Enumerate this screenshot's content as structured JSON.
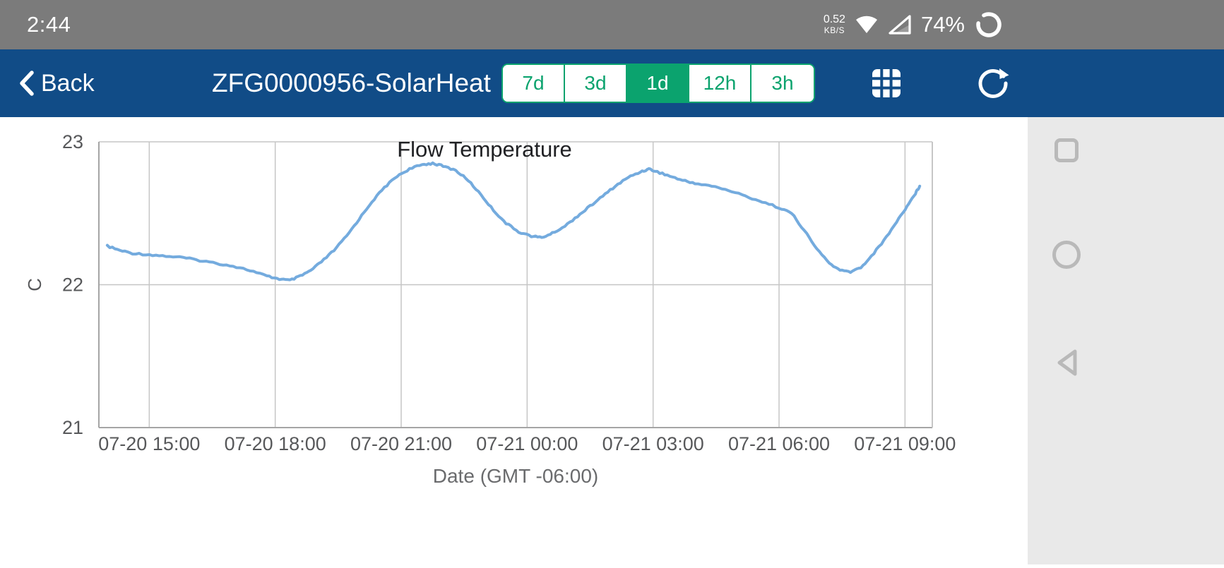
{
  "status_bar": {
    "time": "2:44",
    "network_speed_value": "0.52",
    "network_speed_unit": "KB/S",
    "battery_percent": "74%"
  },
  "nav_bar": {
    "back_label": "Back",
    "title": "ZFG0000956-SolarHeat",
    "range_options": [
      {
        "label": "7d",
        "active": false
      },
      {
        "label": "3d",
        "active": false
      },
      {
        "label": "1d",
        "active": true
      },
      {
        "label": "12h",
        "active": false
      },
      {
        "label": "3h",
        "active": false
      }
    ],
    "icons": [
      "grid-icon",
      "refresh-icon"
    ]
  },
  "system_nav": {
    "icons": [
      "recents-square-icon",
      "home-circle-icon",
      "back-triangle-icon"
    ]
  },
  "colors": {
    "accent_green": "#0BA36E",
    "nav_blue": "#114C87",
    "status_gray": "#7b7b7b",
    "line_blue": "#74ABDE"
  },
  "chart_data": {
    "type": "line",
    "title": "Flow Temperature",
    "xlabel": "Date (GMT -06:00)",
    "ylabel": "C",
    "ylim": [
      21,
      23
    ],
    "yticks": [
      {
        "value": 23,
        "label": "23"
      },
      {
        "value": 22,
        "label": "22"
      },
      {
        "value": 21,
        "label": "21"
      }
    ],
    "xlim": [
      13.8,
      33.65
    ],
    "x_unit": "hours since 07-20 00:00 (GMT -06:00)",
    "xticks": [
      {
        "value": 15,
        "label": "07-20 15:00"
      },
      {
        "value": 18,
        "label": "07-20 18:00"
      },
      {
        "value": 21,
        "label": "07-20 21:00"
      },
      {
        "value": 24,
        "label": "07-21 00:00"
      },
      {
        "value": 27,
        "label": "07-21 03:00"
      },
      {
        "value": 30,
        "label": "07-21 06:00"
      },
      {
        "value": 33,
        "label": "07-21 09:00"
      }
    ],
    "grid": true,
    "series": [
      {
        "name": "Flow Temperature",
        "color": "#74ABDE",
        "points": [
          [
            14.0,
            22.27
          ],
          [
            14.3,
            22.24
          ],
          [
            14.6,
            22.22
          ],
          [
            15.0,
            22.21
          ],
          [
            15.4,
            22.2
          ],
          [
            15.8,
            22.19
          ],
          [
            16.2,
            22.17
          ],
          [
            16.6,
            22.15
          ],
          [
            17.0,
            22.13
          ],
          [
            17.4,
            22.1
          ],
          [
            17.8,
            22.06
          ],
          [
            18.1,
            22.04
          ],
          [
            18.35,
            22.03
          ],
          [
            18.6,
            22.06
          ],
          [
            18.85,
            22.1
          ],
          [
            19.1,
            22.16
          ],
          [
            19.4,
            22.24
          ],
          [
            19.7,
            22.34
          ],
          [
            20.0,
            22.46
          ],
          [
            20.3,
            22.58
          ],
          [
            20.6,
            22.68
          ],
          [
            20.9,
            22.76
          ],
          [
            21.2,
            22.81
          ],
          [
            21.5,
            22.84
          ],
          [
            21.75,
            22.85
          ],
          [
            22.0,
            22.83
          ],
          [
            22.3,
            22.8
          ],
          [
            22.6,
            22.73
          ],
          [
            22.9,
            22.63
          ],
          [
            23.2,
            22.52
          ],
          [
            23.5,
            22.43
          ],
          [
            23.8,
            22.37
          ],
          [
            24.1,
            22.34
          ],
          [
            24.35,
            22.33
          ],
          [
            24.6,
            22.36
          ],
          [
            24.9,
            22.41
          ],
          [
            25.2,
            22.48
          ],
          [
            25.5,
            22.55
          ],
          [
            25.8,
            22.62
          ],
          [
            26.1,
            22.69
          ],
          [
            26.4,
            22.75
          ],
          [
            26.7,
            22.79
          ],
          [
            26.9,
            22.81
          ],
          [
            27.1,
            22.79
          ],
          [
            27.4,
            22.76
          ],
          [
            27.7,
            22.73
          ],
          [
            28.0,
            22.71
          ],
          [
            28.4,
            22.69
          ],
          [
            28.8,
            22.66
          ],
          [
            29.2,
            22.62
          ],
          [
            29.6,
            22.58
          ],
          [
            30.0,
            22.54
          ],
          [
            30.3,
            22.5
          ],
          [
            30.6,
            22.38
          ],
          [
            30.9,
            22.25
          ],
          [
            31.2,
            22.15
          ],
          [
            31.45,
            22.1
          ],
          [
            31.7,
            22.09
          ],
          [
            31.95,
            22.12
          ],
          [
            32.2,
            22.2
          ],
          [
            32.5,
            22.31
          ],
          [
            32.8,
            22.44
          ],
          [
            33.05,
            22.55
          ],
          [
            33.25,
            22.64
          ],
          [
            33.35,
            22.69
          ]
        ]
      }
    ]
  }
}
